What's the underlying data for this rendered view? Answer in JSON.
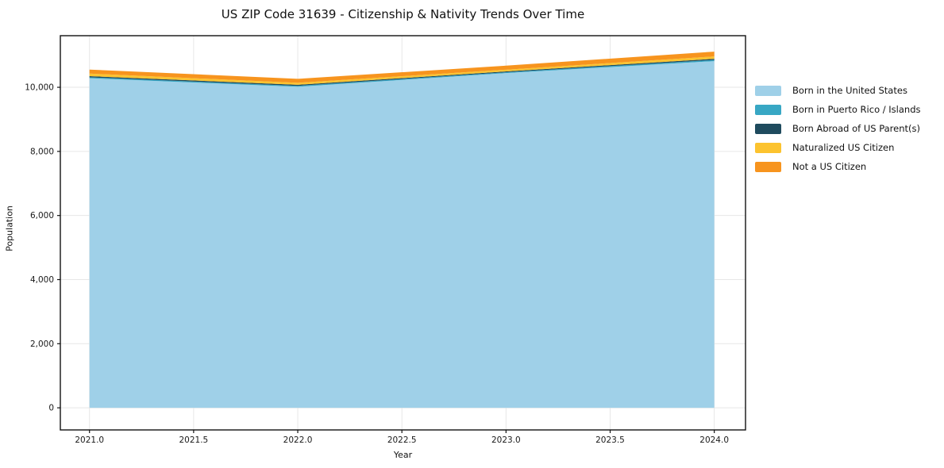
{
  "chart_data": {
    "type": "area",
    "stacked": true,
    "title": "US ZIP Code 31639 - Citizenship & Nativity Trends Over Time",
    "xlabel": "Year",
    "ylabel": "Population",
    "x": [
      2021,
      2022,
      2023,
      2024
    ],
    "series": [
      {
        "name": "Born in the United States",
        "color": "#9fd0e8",
        "values": [
          10282,
          10016,
          10444,
          10816
        ]
      },
      {
        "name": "Born in Puerto Rico / Islands",
        "color": "#38a7c4",
        "values": [
          30,
          30,
          25,
          37
        ]
      },
      {
        "name": "Born Abroad of US Parent(s)",
        "color": "#1f4b5e",
        "values": [
          35,
          34,
          26,
          36
        ]
      },
      {
        "name": "Naturalized US Citizen",
        "color": "#fcc32f",
        "values": [
          80,
          60,
          55,
          74
        ]
      },
      {
        "name": "Not a US Citizen",
        "color": "#f7941e",
        "values": [
          125,
          124,
          125,
          150
        ]
      }
    ],
    "xticks": {
      "values": [
        2021.0,
        2021.5,
        2022.0,
        2022.5,
        2023.0,
        2023.5,
        2024.0
      ],
      "labels": [
        "2021.0",
        "2021.5",
        "2022.0",
        "2022.5",
        "2023.0",
        "2023.5",
        "2024.0"
      ]
    },
    "yticks": {
      "values": [
        0,
        2000,
        4000,
        6000,
        8000,
        10000
      ],
      "labels": [
        "0",
        "2,000",
        "4,000",
        "6,000",
        "8,000",
        "10,000"
      ]
    },
    "xlim": [
      2020.86,
      2024.15
    ],
    "ylim": [
      -690,
      11610
    ],
    "grid": true,
    "legend_position": "right-outside"
  }
}
